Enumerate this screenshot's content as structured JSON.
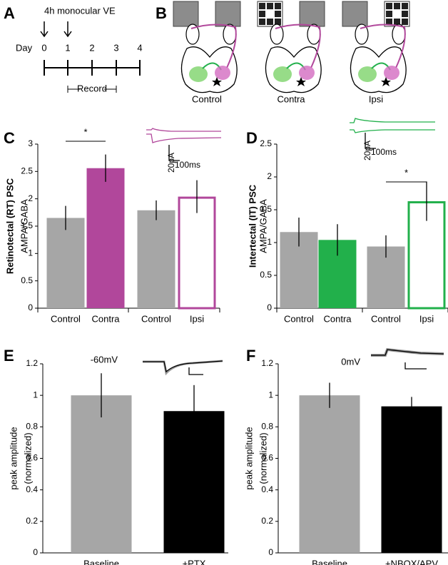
{
  "panel_labels": [
    "A",
    "B",
    "C",
    "D",
    "E",
    "F"
  ],
  "timeline": {
    "title": "4h monocular VE",
    "axis_label": "Day",
    "days": [
      0,
      1,
      2,
      3,
      4
    ],
    "record": "Record"
  },
  "schematic": {
    "conditions": [
      "Control",
      "Contra",
      "Ipsi"
    ]
  },
  "chart_data": [
    {
      "type": "bar",
      "ylabel": [
        "AMPA/GABA"
      ],
      "side_label": "Retinotectal (RT) PSC",
      "side_label_color": "#b1479b",
      "categories": [
        "Control",
        "Contra",
        "Control",
        "Ipsi"
      ],
      "values": [
        1.65,
        2.56,
        1.79,
        2.04
      ],
      "errors": [
        0.22,
        0.25,
        0.18,
        0.3
      ],
      "bar_styles": [
        {
          "fill": "#a6a6a6",
          "stroke": "#a6a6a6"
        },
        {
          "fill": "#b1479b",
          "stroke": "#b1479b"
        },
        {
          "fill": "#a6a6a6",
          "stroke": "#a6a6a6"
        },
        {
          "fill": "#ffffff",
          "stroke": "#b1479b"
        }
      ],
      "ylim": [
        0,
        3
      ],
      "yticks": [
        0,
        0.5,
        1,
        1.5,
        2,
        2.5,
        3
      ],
      "significance": "*",
      "scale_bar": {
        "y": "20pA",
        "x": "100ms"
      }
    },
    {
      "type": "bar",
      "ylabel": [
        "AMPA/GABA"
      ],
      "side_label": "Intertectal (IT) PSC",
      "side_label_color": "#22b04b",
      "categories": [
        "Control",
        "Contra",
        "Control",
        "Ipsi"
      ],
      "values": [
        1.16,
        1.04,
        0.94,
        1.63
      ],
      "errors": [
        0.22,
        0.24,
        0.17,
        0.3
      ],
      "bar_styles": [
        {
          "fill": "#a6a6a6",
          "stroke": "#a6a6a6"
        },
        {
          "fill": "#22b04b",
          "stroke": "#22b04b"
        },
        {
          "fill": "#a6a6a6",
          "stroke": "#a6a6a6"
        },
        {
          "fill": "#ffffff",
          "stroke": "#22b04b"
        }
      ],
      "ylim": [
        0,
        2.5
      ],
      "yticks": [
        0,
        0.5,
        1,
        1.5,
        2,
        2.5
      ],
      "significance": "*",
      "scale_bar": {
        "y": "20pA",
        "x": "100ms"
      }
    },
    {
      "type": "bar",
      "ylabel": [
        "peak amplitude",
        "(normalized)"
      ],
      "categories": [
        "Baseline",
        "+PTX"
      ],
      "values": [
        1.0,
        0.9
      ],
      "errors": [
        0.14,
        0.165
      ],
      "bar_styles": [
        {
          "fill": "#a6a6a6",
          "stroke": "#a6a6a6"
        },
        {
          "fill": "#000000",
          "stroke": "#000000"
        }
      ],
      "ylim": [
        0,
        1.2
      ],
      "yticks": [
        0,
        0.2,
        0.4,
        0.6,
        0.8,
        1,
        1.2
      ],
      "trace_label": "-60mV"
    },
    {
      "type": "bar",
      "ylabel": [
        "peak amplitude",
        "(normalized)"
      ],
      "categories": [
        "Baseline",
        "+NBQX/APV"
      ],
      "values": [
        1.0,
        0.93
      ],
      "errors": [
        0.08,
        0.06
      ],
      "bar_styles": [
        {
          "fill": "#a6a6a6",
          "stroke": "#a6a6a6"
        },
        {
          "fill": "#000000",
          "stroke": "#000000"
        }
      ],
      "ylim": [
        0,
        1.2
      ],
      "yticks": [
        0,
        0.2,
        0.4,
        0.6,
        0.8,
        1,
        1.2
      ],
      "trace_label": "0mV"
    }
  ]
}
